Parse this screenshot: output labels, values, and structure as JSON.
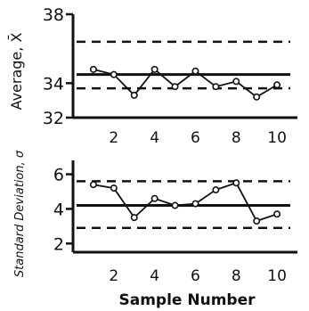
{
  "chart_data": [
    {
      "type": "line",
      "ylabel": "Average, X̄",
      "xlim": [
        0,
        11
      ],
      "ylim": [
        32,
        38
      ],
      "yticks": [
        32,
        34,
        38
      ],
      "xticks": [
        2,
        4,
        6,
        8,
        10
      ],
      "x": [
        1,
        2,
        3,
        4,
        5,
        6,
        7,
        8,
        9,
        10
      ],
      "series": [
        {
          "values": [
            34.8,
            34.5,
            33.3,
            34.8,
            33.8,
            34.7,
            33.8,
            34.1,
            33.2,
            33.9
          ]
        }
      ],
      "center_line": 34.5,
      "upper_limit": 36.4,
      "lower_limit": 33.7
    },
    {
      "type": "line",
      "ylabel": "Standard Deviation, σ",
      "xlabel": "Sample Number",
      "xlim": [
        0,
        11
      ],
      "ylim": [
        1.5,
        6.8
      ],
      "yticks": [
        2,
        4,
        6
      ],
      "xticks": [
        2,
        4,
        6,
        8,
        10
      ],
      "x": [
        1,
        2,
        3,
        4,
        5,
        6,
        7,
        8,
        9,
        10
      ],
      "series": [
        {
          "values": [
            5.4,
            5.2,
            3.5,
            4.6,
            4.2,
            4.3,
            5.1,
            5.5,
            3.3,
            3.7
          ]
        }
      ],
      "center_line": 4.2,
      "upper_limit": 5.6,
      "lower_limit": 2.9
    }
  ]
}
